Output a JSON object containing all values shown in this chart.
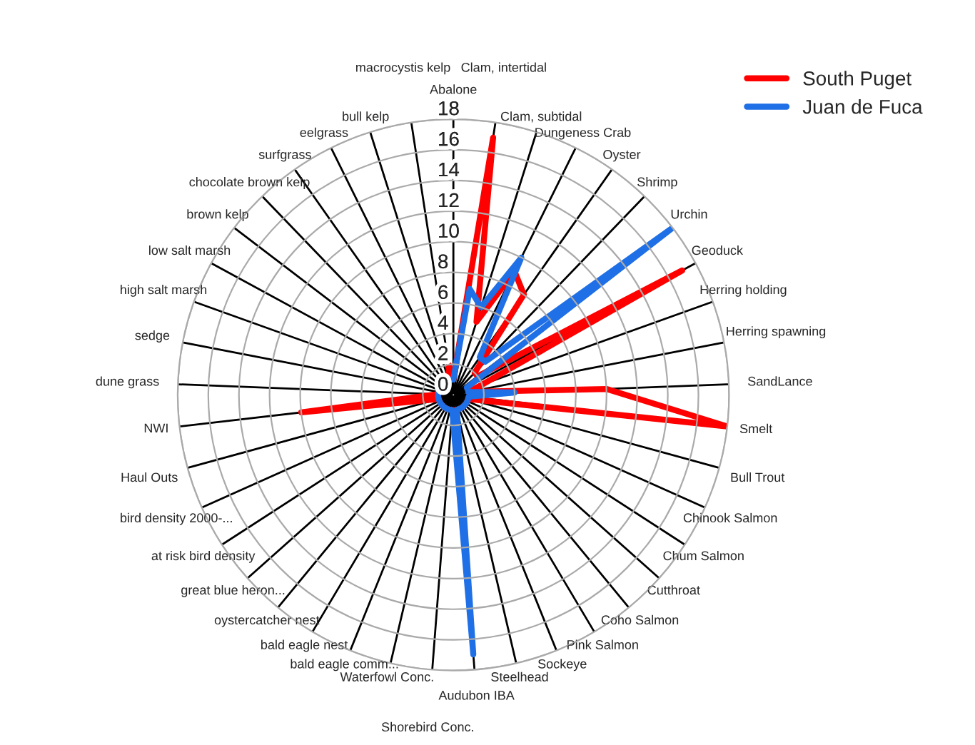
{
  "chart_data": {
    "type": "radar",
    "categories": [
      "Abalone",
      "Clam, intertidal",
      "Clam, subtidal",
      "Dungeness Crab",
      "Oyster",
      "Shrimp",
      "Urchin",
      "Geoduck",
      "Herring holding",
      "Herring spawning",
      "SandLance",
      "Smelt",
      "Bull Trout",
      "Chinook Salmon",
      "Chum Salmon",
      "Cutthroat",
      "Coho Salmon",
      "Pink Salmon",
      "Sockeye",
      "Steelhead",
      "Audubon IBA",
      "Shorebird Conc.",
      "Waterfowl Conc.",
      "bald eagle comm...",
      "bald eagle nest",
      "oystercatcher nest",
      "great blue heron...",
      "at risk bird density",
      "bird density 2000-...",
      "Haul Outs",
      "NWI",
      "dune grass",
      "sedge",
      "high salt marsh",
      "low salt marsh",
      "brown kelp",
      "chocolate brown kelp",
      "surfgrass",
      "eelgrass",
      "bull kelp",
      "macrocystis kelp"
    ],
    "series": [
      {
        "name": "South Puget",
        "color": "#ff0000",
        "values": [
          1,
          17,
          5,
          9,
          8,
          2,
          2,
          17,
          2,
          1,
          10,
          18,
          1,
          1,
          1,
          1,
          1,
          1,
          1,
          1,
          1,
          1,
          1,
          1,
          1,
          1,
          1,
          1,
          1,
          1,
          10,
          1,
          1,
          1,
          1,
          1,
          1,
          1,
          1,
          1,
          2
        ]
      },
      {
        "name": "Juan de Fuca",
        "color": "#1f6fe6",
        "values": [
          1,
          7,
          6,
          10,
          3,
          3,
          18,
          1,
          1,
          1,
          4,
          1,
          1,
          1,
          1,
          1,
          1,
          1,
          1,
          1,
          17,
          1,
          1,
          1,
          1,
          1,
          1,
          1,
          1,
          1,
          1,
          1,
          1,
          1,
          1,
          1,
          1,
          1,
          1,
          1,
          1
        ]
      }
    ],
    "ylim": [
      0,
      18
    ],
    "yticks": [
      0,
      2,
      4,
      6,
      8,
      10,
      12,
      14,
      16,
      18
    ],
    "grid": true,
    "legend": "top right",
    "marker": "none",
    "line_style": "solid"
  }
}
